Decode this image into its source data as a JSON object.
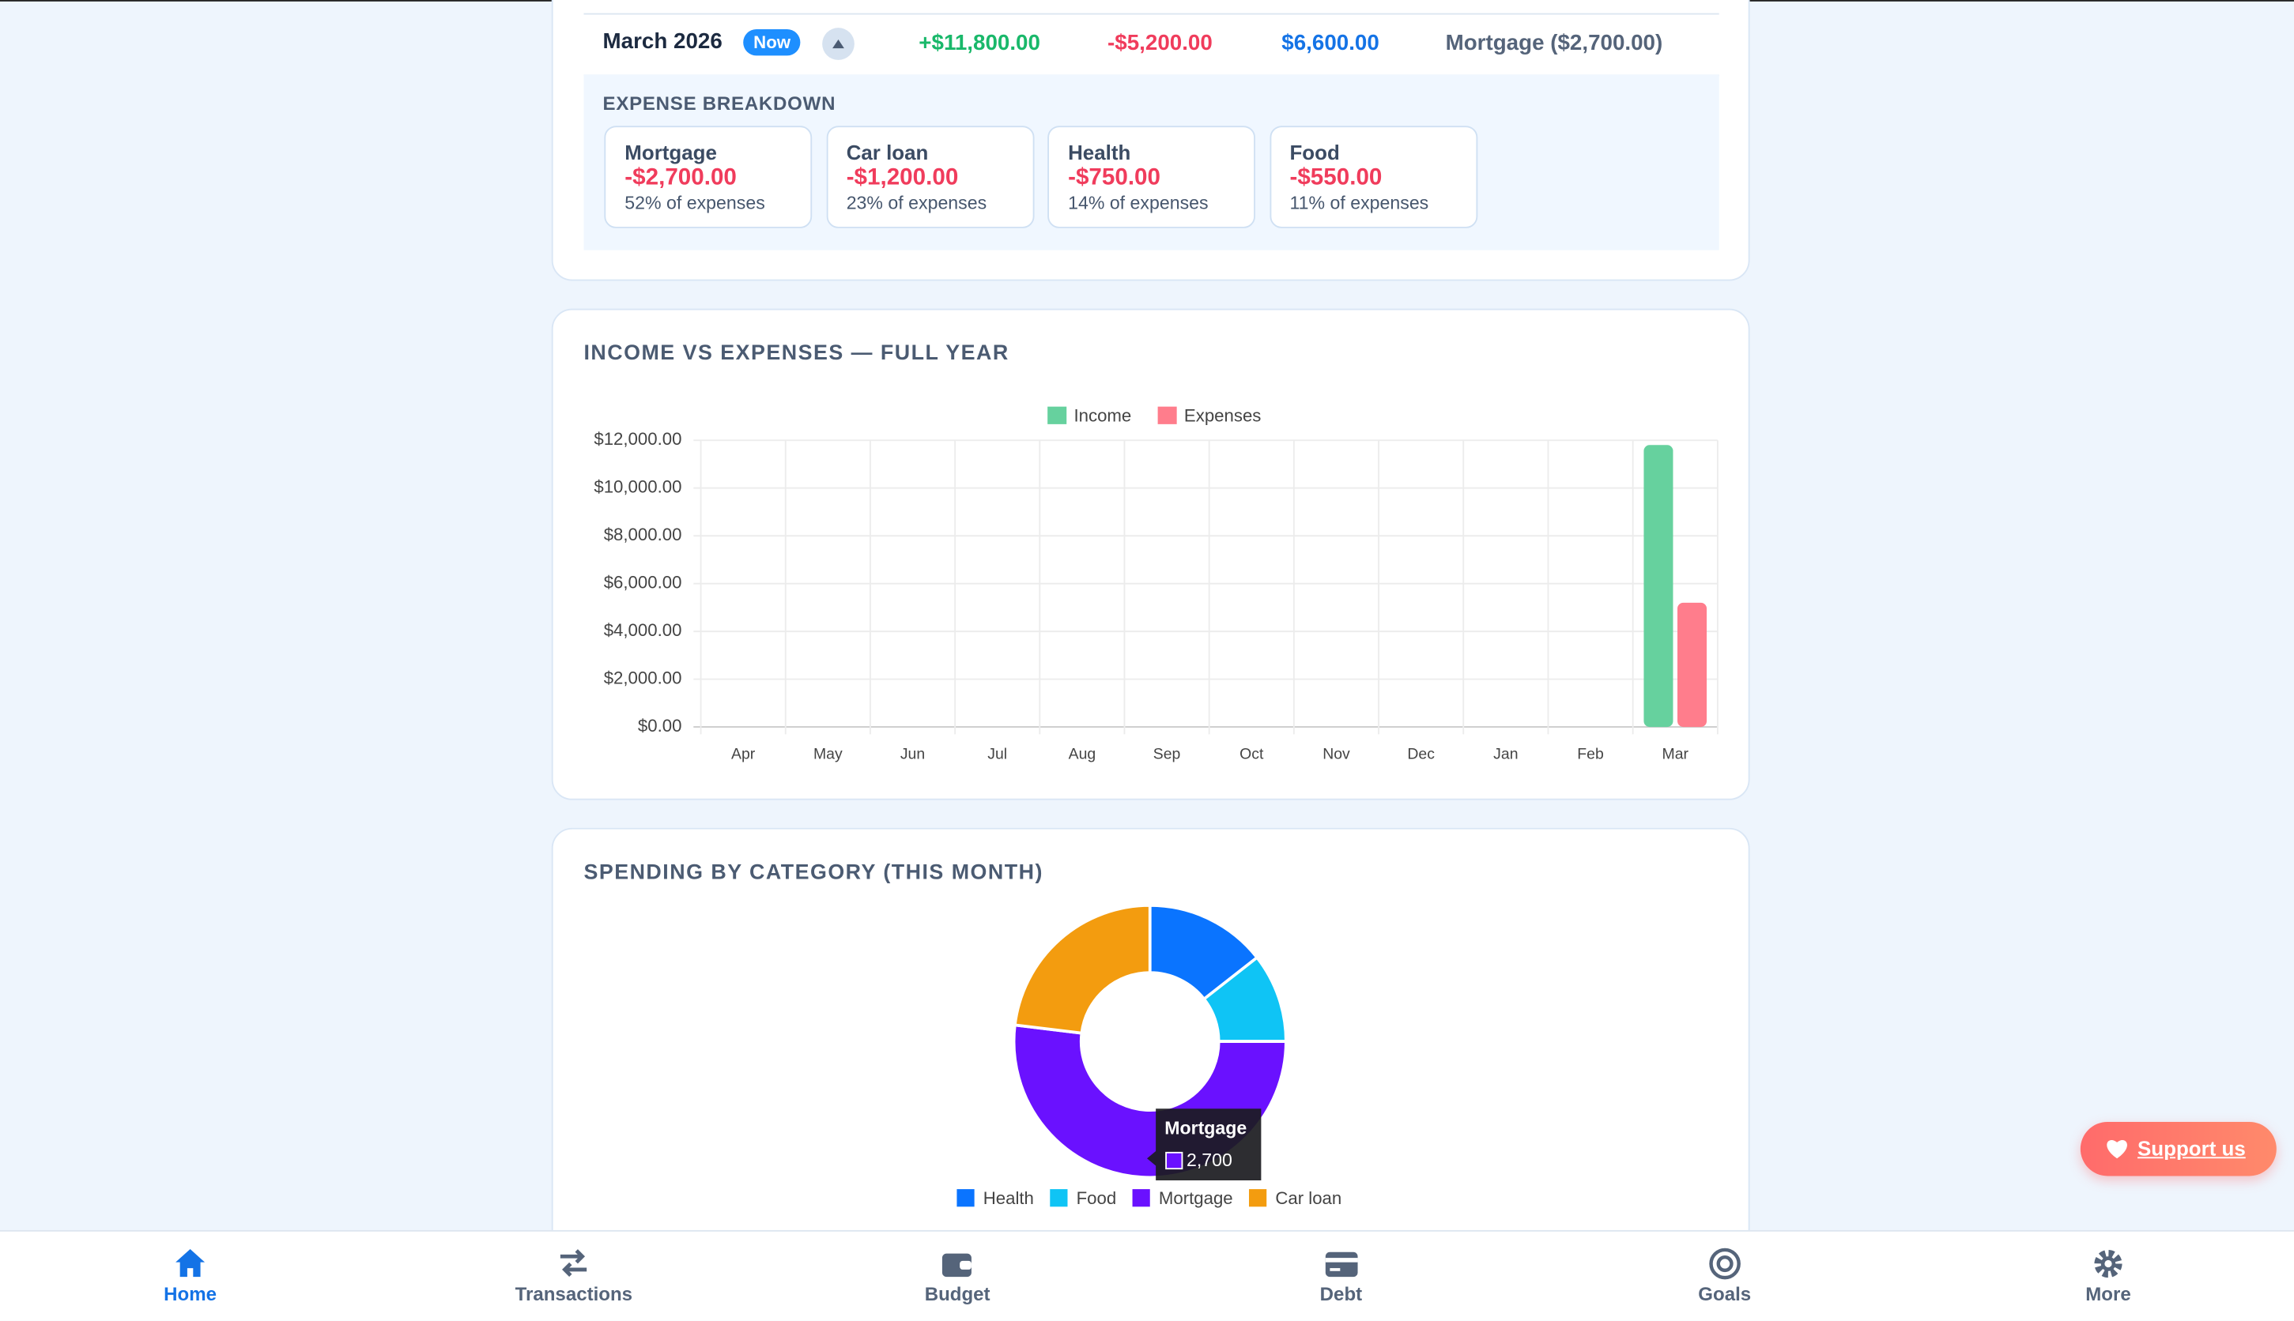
{
  "month_row": {
    "month": "March 2026",
    "badge": "Now",
    "income": "+$11,800.00",
    "expenses": "-$5,200.00",
    "net": "$6,600.00",
    "top": "Mortgage ($2,700.00)"
  },
  "breakdown": {
    "title": "EXPENSE BREAKDOWN",
    "items": [
      {
        "name": "Mortgage",
        "amount": "-$2,700.00",
        "share": "52% of expenses"
      },
      {
        "name": "Car loan",
        "amount": "-$1,200.00",
        "share": "23% of expenses"
      },
      {
        "name": "Health",
        "amount": "-$750.00",
        "share": "14% of expenses"
      },
      {
        "name": "Food",
        "amount": "-$550.00",
        "share": "11% of expenses"
      }
    ]
  },
  "chart_data": [
    {
      "type": "bar",
      "title": "INCOME VS EXPENSES — FULL YEAR",
      "categories": [
        "Apr",
        "May",
        "Jun",
        "Jul",
        "Aug",
        "Sep",
        "Oct",
        "Nov",
        "Dec",
        "Jan",
        "Feb",
        "Mar"
      ],
      "series": [
        {
          "name": "Income",
          "color": "#66d19e",
          "values": [
            null,
            null,
            null,
            null,
            null,
            null,
            null,
            null,
            null,
            null,
            null,
            11800
          ]
        },
        {
          "name": "Expenses",
          "color": "#ff7d8c",
          "values": [
            null,
            null,
            null,
            null,
            null,
            null,
            null,
            null,
            null,
            null,
            null,
            5200
          ]
        }
      ],
      "ylim": [
        0,
        12000
      ],
      "yticks": [
        {
          "value": 0,
          "label": "$0.00"
        },
        {
          "value": 2000,
          "label": "$2,000.00"
        },
        {
          "value": 4000,
          "label": "$4,000.00"
        },
        {
          "value": 6000,
          "label": "$6,000.00"
        },
        {
          "value": 8000,
          "label": "$8,000.00"
        },
        {
          "value": 10000,
          "label": "$10,000.00"
        },
        {
          "value": 12000,
          "label": "$12,000.00"
        }
      ],
      "grid": true,
      "legend": "top"
    },
    {
      "type": "doughnut",
      "title": "SPENDING BY CATEGORY (THIS MONTH)",
      "categories": [
        "Health",
        "Food",
        "Mortgage",
        "Car loan"
      ],
      "values": [
        750,
        550,
        2700,
        1200
      ],
      "colors": [
        "#0a74ff",
        "#0fc4f5",
        "#6a11ff",
        "#f39c0f"
      ],
      "legend": "bottom",
      "tooltip": {
        "title": "Mortgage",
        "label": "2,700"
      }
    }
  ],
  "nav": {
    "items": [
      "Home",
      "Transactions",
      "Budget",
      "Debt",
      "Goals",
      "More"
    ]
  },
  "support": "Support us"
}
